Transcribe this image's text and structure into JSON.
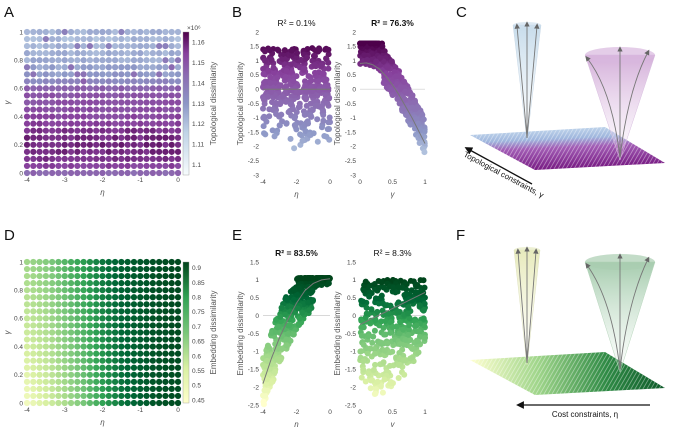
{
  "panels": {
    "A": "A",
    "B": "B",
    "C": "C",
    "D": "D",
    "E": "E",
    "F": "F"
  },
  "colors": {
    "purple_scale": [
      "#f7fcfd",
      "#bfd3e6",
      "#8c96c6",
      "#8c6bb1",
      "#88419d",
      "#4d004b"
    ],
    "green_scale": [
      "#ffffcc",
      "#d9f0a3",
      "#addd8e",
      "#78c679",
      "#31a354",
      "#006837",
      "#00441b"
    ],
    "fit_line": "#777777"
  },
  "chart_data": [
    {
      "id": "A",
      "type": "heatmap",
      "xlabel": "η",
      "ylabel": "γ",
      "xlim": [
        -4,
        0
      ],
      "ylim": [
        0,
        1
      ],
      "xticks": [
        "-4",
        "-3",
        "-2",
        "-1",
        "0"
      ],
      "yticks": [
        "0",
        "0.2",
        "0.4",
        "0.6",
        "0.8",
        "1"
      ],
      "colorbar": {
        "label": "Topological dissimilarity",
        "multiplier": "×10⁶",
        "range": [
          1.095,
          1.165
        ],
        "ticks": [
          "1.1",
          "1.11",
          "1.12",
          "1.13",
          "1.14",
          "1.15",
          "1.16"
        ]
      },
      "gamma": [
        0,
        0.05,
        0.1,
        0.15,
        0.2,
        0.25,
        0.3,
        0.35,
        0.4,
        0.45,
        0.5,
        0.55,
        0.6,
        0.65,
        0.7,
        0.75,
        0.8,
        0.85,
        0.9,
        0.95,
        1
      ],
      "row_values_x1e6": [
        1.138,
        1.15,
        1.154,
        1.156,
        1.157,
        1.156,
        1.154,
        1.151,
        1.149,
        1.147,
        1.146,
        1.144,
        1.14,
        1.128,
        1.122,
        1.12,
        1.118,
        1.117,
        1.116,
        1.115,
        1.117
      ],
      "eta_count": 25
    },
    {
      "id": "B-left",
      "type": "scatter",
      "title": "R² = 0.1%",
      "xlabel": "η",
      "ylabel": "Topological dissimilarity",
      "xlim": [
        -4,
        0
      ],
      "ylim": [
        -3,
        2
      ],
      "xticks": [
        "-4",
        "-2",
        "0"
      ],
      "yticks": [
        "2",
        "1.5",
        "1",
        "0.5",
        "0",
        "-0.5",
        "-1",
        "-1.5",
        "-2",
        "-2.5",
        "-3"
      ],
      "fit": {
        "x": [
          -4,
          0
        ],
        "y": [
          0,
          0
        ]
      }
    },
    {
      "id": "B-right",
      "type": "scatter",
      "title": "R² = 76.3%",
      "xlabel": "γ",
      "ylabel": "Topological dissimilarity",
      "xlim": [
        0,
        1
      ],
      "ylim": [
        -3,
        2
      ],
      "xticks": [
        "0",
        "0.5",
        "1"
      ],
      "yticks": [
        "2",
        "1.5",
        "1",
        "0.5",
        "0",
        "-0.5",
        "-1",
        "-1.5",
        "-2",
        "-2.5",
        "-3"
      ],
      "fit": {
        "x": [
          0,
          0.1,
          0.2,
          0.3,
          0.4,
          0.5,
          0.6,
          0.7,
          0.8,
          0.9,
          1
        ],
        "y": [
          0.9,
          0.92,
          0.85,
          0.7,
          0.45,
          0.15,
          -0.2,
          -0.6,
          -1.0,
          -1.45,
          -1.9
        ]
      }
    },
    {
      "id": "D",
      "type": "heatmap",
      "xlabel": "η",
      "ylabel": "γ",
      "xlim": [
        -4,
        0
      ],
      "ylim": [
        0,
        1
      ],
      "xticks": [
        "-4",
        "-3",
        "-2",
        "-1",
        "0"
      ],
      "yticks": [
        "0",
        "0.2",
        "0.4",
        "0.6",
        "0.8",
        "1"
      ],
      "colorbar": {
        "label": "Embedding dissimilarity",
        "range": [
          0.44,
          0.92
        ],
        "ticks": [
          "0.45",
          "0.5",
          "0.55",
          "0.6",
          "0.65",
          "0.7",
          "0.75",
          "0.8",
          "0.85",
          "0.9"
        ]
      },
      "eta": [
        -4,
        -3.5,
        -3,
        -2.5,
        -2,
        -1.5,
        -1,
        -0.5,
        0
      ],
      "values_gamma0": [
        0.47,
        0.52,
        0.6,
        0.68,
        0.76,
        0.82,
        0.86,
        0.89,
        0.9
      ],
      "values_gamma1": [
        0.62,
        0.66,
        0.72,
        0.77,
        0.82,
        0.86,
        0.88,
        0.9,
        0.91
      ],
      "gamma_count": 21
    },
    {
      "id": "E-left",
      "type": "scatter",
      "title": "R² = 83.5%",
      "xlabel": "η",
      "ylabel": "Embedding dissimilarity",
      "xlim": [
        -4,
        0
      ],
      "ylim": [
        -2.5,
        1.5
      ],
      "xticks": [
        "-4",
        "-2",
        "0"
      ],
      "yticks": [
        "1.5",
        "1",
        "0.5",
        "0",
        "-0.5",
        "-1",
        "-1.5",
        "-2",
        "-2.5"
      ],
      "fit": {
        "x": [
          -4,
          -3.5,
          -3,
          -2.5,
          -2,
          -1.5,
          -1,
          -0.5,
          0
        ],
        "y": [
          -1.9,
          -1.2,
          -0.6,
          -0.1,
          0.35,
          0.7,
          0.9,
          1.0,
          1.03
        ]
      }
    },
    {
      "id": "E-right",
      "type": "scatter",
      "title": "R² = 8.3%",
      "xlabel": "γ",
      "ylabel": "Embedding dissimilarity",
      "xlim": [
        0,
        1
      ],
      "ylim": [
        -2.5,
        1.5
      ],
      "xticks": [
        "0",
        "0.5",
        "1"
      ],
      "yticks": [
        "1.5",
        "1",
        "0.5",
        "0",
        "-0.5",
        "-1",
        "-1.5",
        "-2",
        "-2.5"
      ],
      "fit": {
        "x": [
          0,
          1
        ],
        "y": [
          -0.25,
          0.65
        ]
      }
    }
  ],
  "illustrations": {
    "C": {
      "axis_label": "Topological constraints, γ"
    },
    "F": {
      "axis_label": "Cost constraints, η"
    }
  }
}
